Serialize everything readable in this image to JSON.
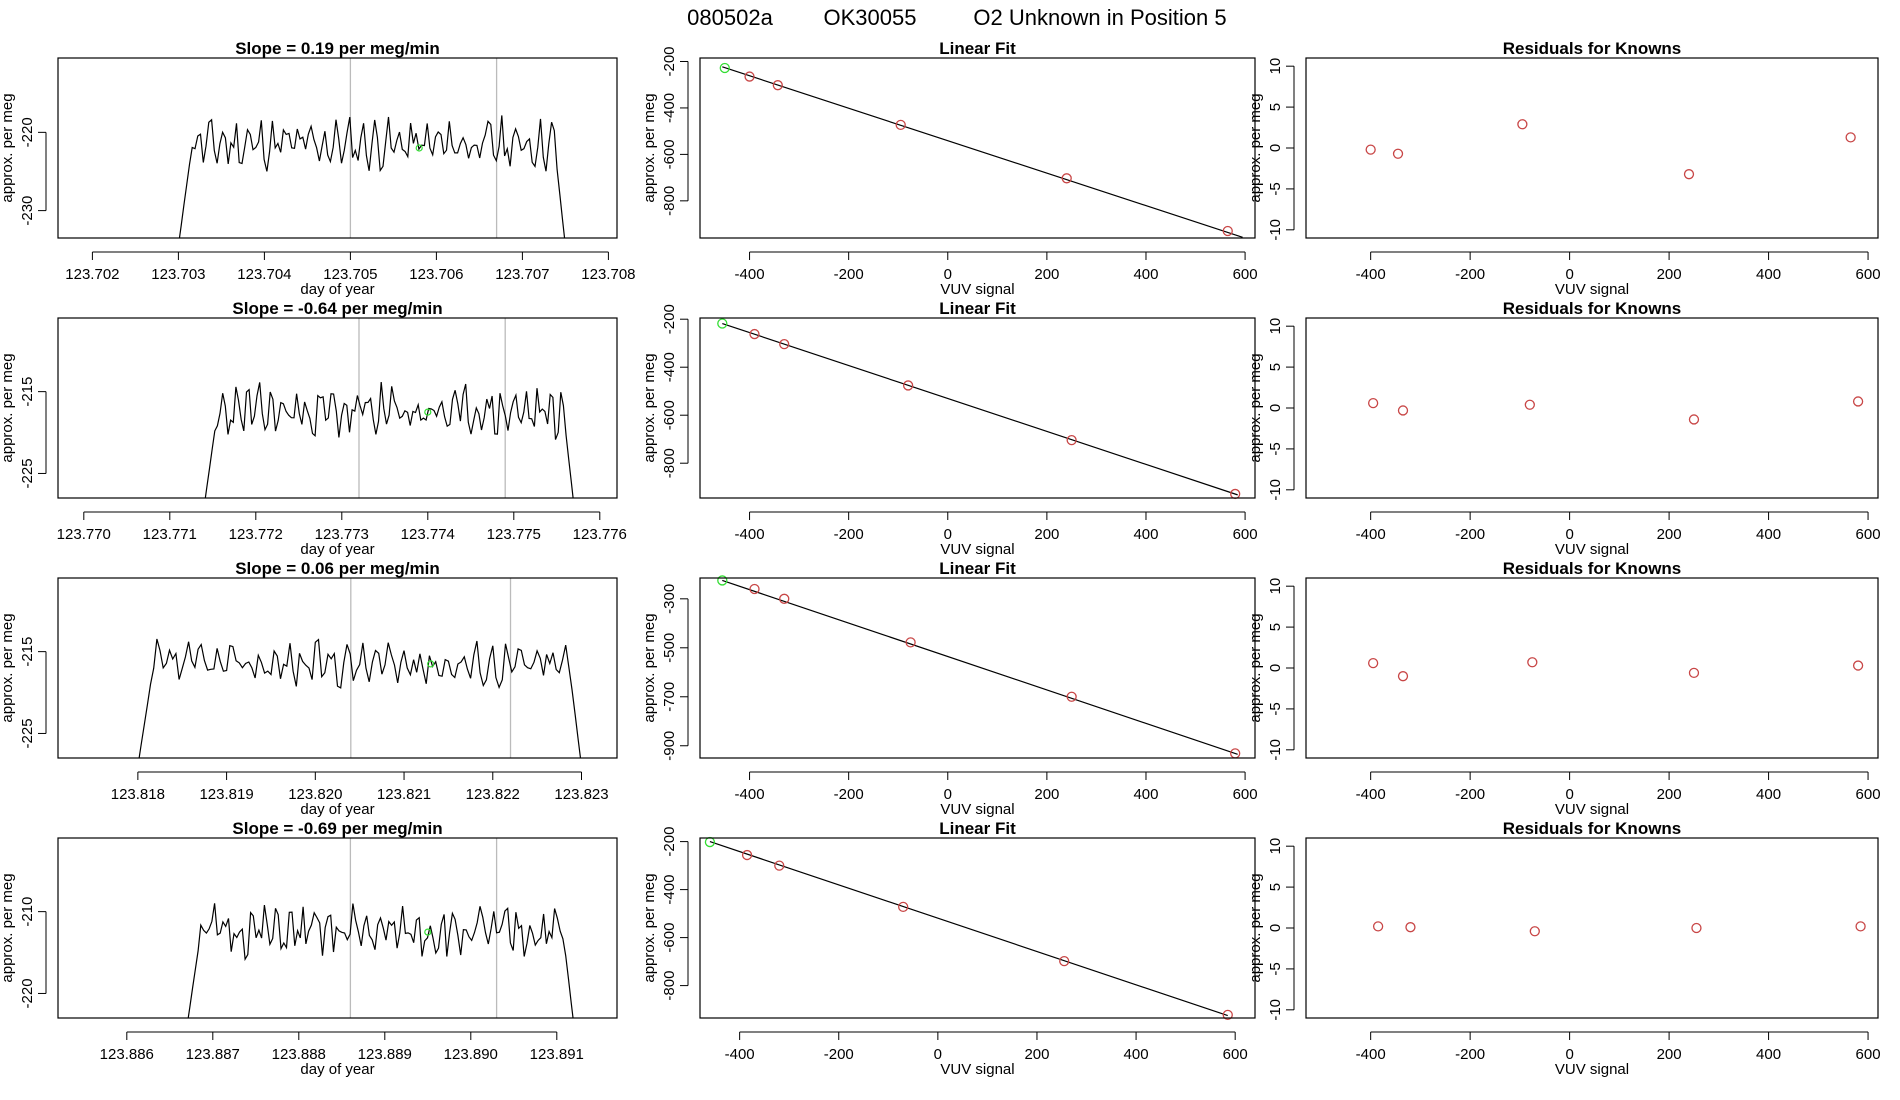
{
  "figure": {
    "title_parts": [
      "080502a",
      "OK30055",
      "O2 Unknown in Position  5"
    ]
  },
  "colors": {
    "line": "#000000",
    "known": "#c84646",
    "unknown": "#33dd33",
    "vline": "#bbbbbb"
  },
  "chart_data": [
    {
      "type": "line",
      "title": "Slope =  0.19  per meg/min",
      "xlabel": "day of year",
      "ylabel": "approx. per meg",
      "xlim": [
        123.7016,
        123.7081
      ],
      "ylim": [
        -233.5,
        -210.5
      ],
      "xticks": [
        "123.702",
        "123.703",
        "123.704",
        "123.705",
        "123.706",
        "123.707",
        "123.708"
      ],
      "yticks": [
        "-220",
        "-230"
      ],
      "series_start": 123.703,
      "series_end": 123.7075,
      "baseline": -221.5,
      "amp": 2.5,
      "seed": 11,
      "vlines": [
        123.705,
        123.7067
      ],
      "marker": {
        "x": 123.7058,
        "y": -222.0
      }
    },
    {
      "type": "scatter",
      "title": "Linear Fit",
      "xlabel": "VUV signal",
      "ylabel": "approx. per meg",
      "xlim": [
        -500,
        620
      ],
      "ylim": [
        -960,
        -185
      ],
      "xticks": [
        "-400",
        "-200",
        "0",
        "200",
        "400",
        "600"
      ],
      "yticks": [
        "-200",
        "-400",
        "-600",
        "-800"
      ],
      "fit_line": [
        [
          -455,
          -223
        ],
        [
          595,
          -957
        ]
      ],
      "unknown_point": [
        -450,
        -228
      ],
      "points": [
        [
          -400,
          -265
        ],
        [
          -343,
          -302
        ],
        [
          -95,
          -473
        ],
        [
          240,
          -703
        ],
        [
          565,
          -930
        ]
      ]
    },
    {
      "type": "scatter",
      "title": "Residuals for Knowns",
      "xlabel": "VUV signal",
      "ylabel": "approx. per meg",
      "xlim": [
        -530,
        620
      ],
      "ylim": [
        -11,
        11
      ],
      "xticks": [
        "-400",
        "-200",
        "0",
        "200",
        "400",
        "600"
      ],
      "yticks": [
        "10",
        "5",
        "0",
        "-5",
        "-10"
      ],
      "points": [
        [
          -400,
          -0.2
        ],
        [
          -345,
          -0.7
        ],
        [
          -95,
          2.9
        ],
        [
          240,
          -3.2
        ],
        [
          565,
          1.3
        ]
      ]
    },
    {
      "type": "line",
      "title": "Slope =  -0.64  per meg/min",
      "xlabel": "day of year",
      "ylabel": "approx. per meg",
      "xlim": [
        123.7697,
        123.7762
      ],
      "ylim": [
        -228,
        -206
      ],
      "xticks": [
        "123.770",
        "123.771",
        "123.772",
        "123.773",
        "123.774",
        "123.775",
        "123.776"
      ],
      "yticks": [
        "-215",
        "-225"
      ],
      "series_start": 123.7714,
      "series_end": 123.7757,
      "baseline": -217.5,
      "amp": 2.5,
      "seed": 23,
      "vlines": [
        123.7732,
        123.7749
      ],
      "marker": {
        "x": 123.774,
        "y": -217.5
      }
    },
    {
      "type": "scatter",
      "title": "Linear Fit",
      "xlabel": "VUV signal",
      "ylabel": "approx. per meg",
      "xlim": [
        -500,
        620
      ],
      "ylim": [
        -945,
        -195
      ],
      "xticks": [
        "-400",
        "-200",
        "0",
        "200",
        "400",
        "600"
      ],
      "yticks": [
        "-200",
        "-400",
        "-600",
        "-800"
      ],
      "fit_line": [
        [
          -455,
          -218
        ],
        [
          585,
          -932
        ]
      ],
      "unknown_point": [
        -455,
        -218
      ],
      "points": [
        [
          -390,
          -262
        ],
        [
          -330,
          -304
        ],
        [
          -80,
          -476
        ],
        [
          250,
          -704
        ],
        [
          580,
          -928
        ]
      ]
    },
    {
      "type": "scatter",
      "title": "Residuals for Knowns",
      "xlabel": "VUV signal",
      "ylabel": "approx. per meg",
      "xlim": [
        -530,
        620
      ],
      "ylim": [
        -11,
        11
      ],
      "xticks": [
        "-400",
        "-200",
        "0",
        "200",
        "400",
        "600"
      ],
      "yticks": [
        "10",
        "5",
        "0",
        "-5",
        "-10"
      ],
      "points": [
        [
          -395,
          0.6
        ],
        [
          -335,
          -0.3
        ],
        [
          -80,
          0.4
        ],
        [
          250,
          -1.4
        ],
        [
          580,
          0.8
        ]
      ]
    },
    {
      "type": "line",
      "title": "Slope =  0.06  per meg/min",
      "xlabel": "day of year",
      "ylabel": "approx. per meg",
      "xlim": [
        123.8171,
        123.8234
      ],
      "ylim": [
        -228,
        -206
      ],
      "xticks": [
        "123.818",
        "123.819",
        "123.820",
        "123.821",
        "123.822",
        "123.823"
      ],
      "yticks": [
        "-215",
        "-225"
      ],
      "series_start": 123.818,
      "series_end": 123.823,
      "baseline": -216.5,
      "amp": 2.2,
      "seed": 37,
      "vlines": [
        123.8204,
        123.8222
      ],
      "marker": {
        "x": 123.8213,
        "y": -216.5
      }
    },
    {
      "type": "scatter",
      "title": "Linear Fit",
      "xlabel": "VUV signal",
      "ylabel": "approx. per meg",
      "xlim": [
        -500,
        620
      ],
      "ylim": [
        -950,
        -215
      ],
      "xticks": [
        "-400",
        "-200",
        "0",
        "200",
        "400",
        "600"
      ],
      "yticks": [
        "-300",
        "-500",
        "-700",
        "-900"
      ],
      "fit_line": [
        [
          -455,
          -225
        ],
        [
          585,
          -935
        ]
      ],
      "unknown_point": [
        -455,
        -225
      ],
      "points": [
        [
          -390,
          -260
        ],
        [
          -330,
          -300
        ],
        [
          -75,
          -478
        ],
        [
          250,
          -700
        ],
        [
          580,
          -931
        ]
      ]
    },
    {
      "type": "scatter",
      "title": "Residuals for Knowns",
      "xlabel": "VUV signal",
      "ylabel": "approx. per meg",
      "xlim": [
        -530,
        620
      ],
      "ylim": [
        -11,
        11
      ],
      "xticks": [
        "-400",
        "-200",
        "0",
        "200",
        "400",
        "600"
      ],
      "yticks": [
        "10",
        "5",
        "0",
        "-5",
        "-10"
      ],
      "points": [
        [
          -395,
          0.6
        ],
        [
          -335,
          -1.0
        ],
        [
          -75,
          0.7
        ],
        [
          250,
          -0.6
        ],
        [
          580,
          0.3
        ]
      ]
    },
    {
      "type": "line",
      "title": "Slope =  -0.69  per meg/min",
      "xlabel": "day of year",
      "ylabel": "approx. per meg",
      "xlim": [
        123.8852,
        123.8917
      ],
      "ylim": [
        -223,
        -201
      ],
      "xticks": [
        "123.886",
        "123.887",
        "123.888",
        "123.889",
        "123.890",
        "123.891"
      ],
      "yticks": [
        "-210",
        "-220"
      ],
      "series_start": 123.8867,
      "series_end": 123.8912,
      "baseline": -212.5,
      "amp": 2.5,
      "seed": 51,
      "vlines": [
        123.8886,
        123.8903
      ],
      "marker": {
        "x": 123.8895,
        "y": -212.5
      }
    },
    {
      "type": "scatter",
      "title": "Linear Fit",
      "xlabel": "VUV signal",
      "ylabel": "approx. per meg",
      "xlim": [
        -480,
        640
      ],
      "ylim": [
        -935,
        -185
      ],
      "xticks": [
        "-400",
        "-200",
        "0",
        "200",
        "400",
        "600"
      ],
      "yticks": [
        "-200",
        "-400",
        "-600",
        "-800"
      ],
      "fit_line": [
        [
          -460,
          -200
        ],
        [
          585,
          -925
        ]
      ],
      "unknown_point": [
        -460,
        -202
      ],
      "points": [
        [
          -385,
          -256
        ],
        [
          -320,
          -300
        ],
        [
          -70,
          -472
        ],
        [
          255,
          -698
        ],
        [
          585,
          -922
        ]
      ]
    },
    {
      "type": "scatter",
      "title": "Residuals for Knowns",
      "xlabel": "VUV signal",
      "ylabel": "approx. per meg",
      "xlim": [
        -530,
        620
      ],
      "ylim": [
        -11,
        11
      ],
      "xticks": [
        "-400",
        "-200",
        "0",
        "200",
        "400",
        "600"
      ],
      "yticks": [
        "10",
        "5",
        "0",
        "-5",
        "-10"
      ],
      "points": [
        [
          -385,
          0.2
        ],
        [
          -320,
          0.1
        ],
        [
          -70,
          -0.4
        ],
        [
          255,
          0.0
        ],
        [
          585,
          0.2
        ]
      ]
    }
  ]
}
